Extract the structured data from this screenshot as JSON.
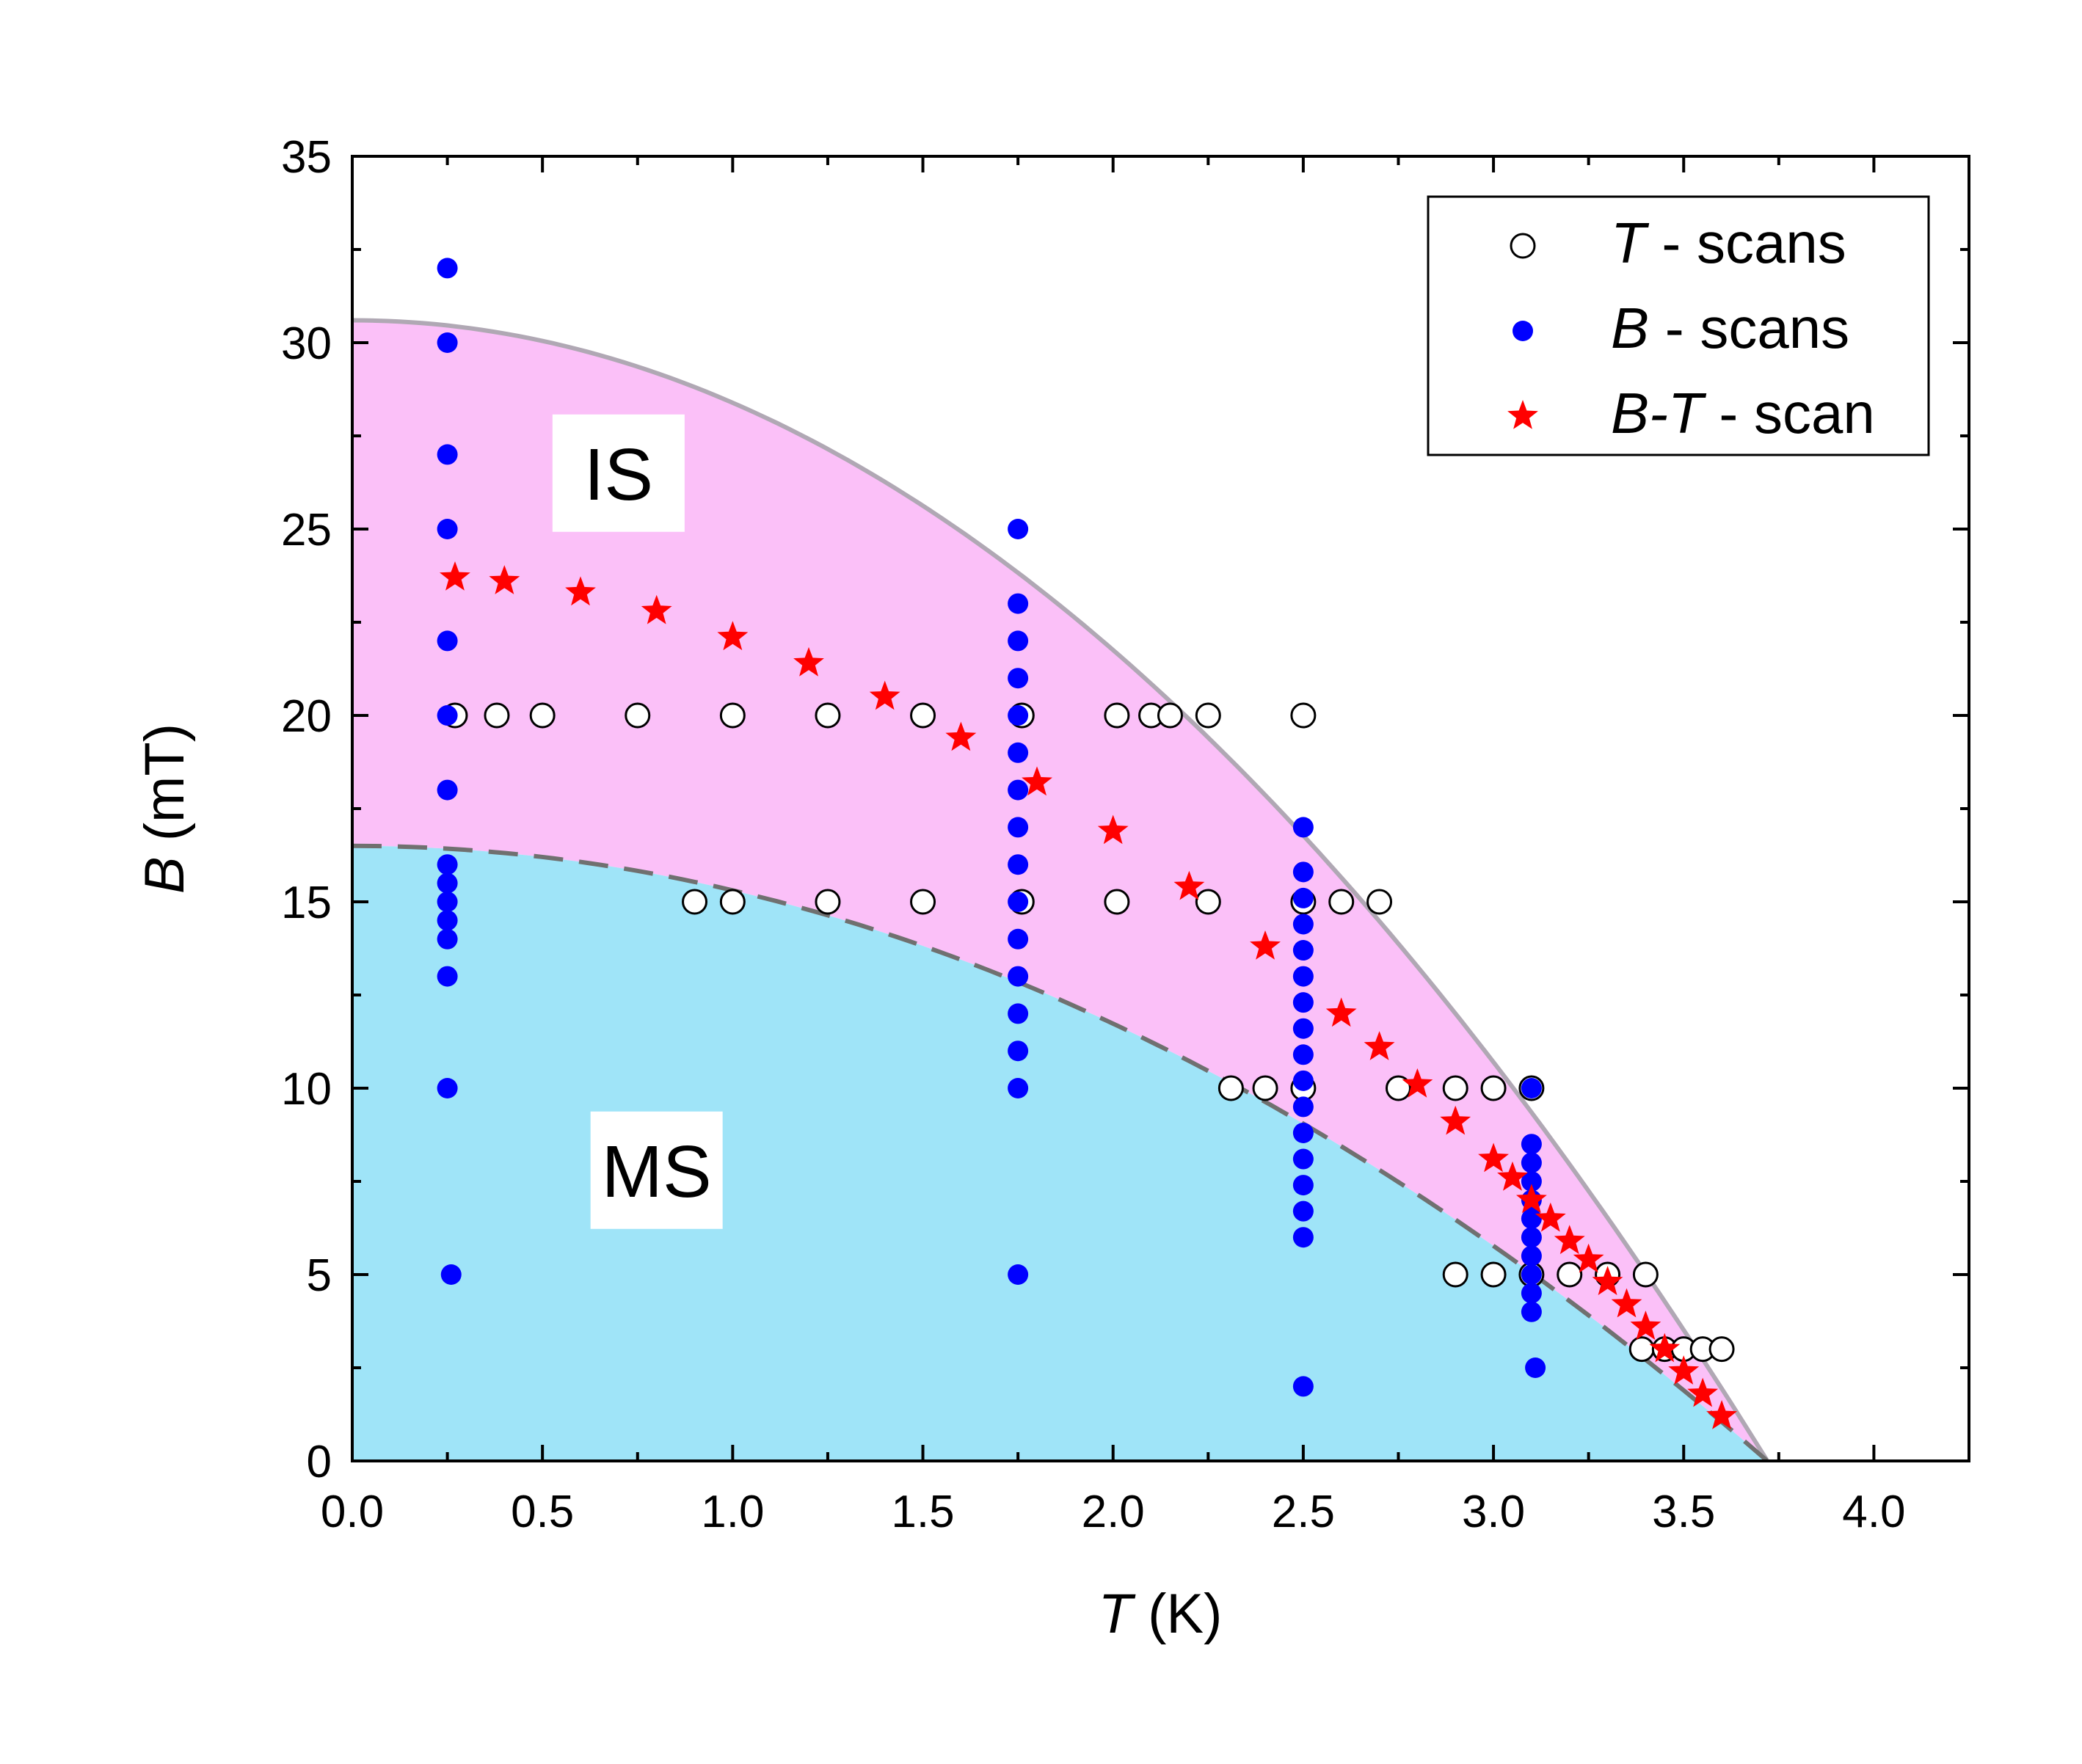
{
  "chart_data": {
    "type": "scatter",
    "title": "",
    "xlabel": "T (K)",
    "xlabel_italic": "T",
    "xlabel_rest": " (K)",
    "ylabel": "B (mT)",
    "ylabel_italic": "B",
    "ylabel_rest": " (mT)",
    "xlim": [
      0.0,
      4.25
    ],
    "ylim": [
      0,
      35
    ],
    "x_ticks": [
      0.0,
      0.5,
      1.0,
      1.5,
      2.0,
      2.5,
      3.0,
      3.5,
      4.0
    ],
    "x_tick_labels": [
      "0.0",
      "0.5",
      "1.0",
      "1.5",
      "2.0",
      "2.5",
      "3.0",
      "3.5",
      "4.0"
    ],
    "y_ticks": [
      0,
      5,
      10,
      15,
      20,
      25,
      30,
      35
    ],
    "y_tick_labels": [
      "0",
      "5",
      "10",
      "15",
      "20",
      "25",
      "30",
      "35"
    ],
    "legend_position": "top-right",
    "regions": [
      {
        "label": "IS",
        "color": "#fbc0f8",
        "boundary": "upper",
        "label_x": 0.7,
        "label_y": 26.5
      },
      {
        "label": "MS",
        "color": "#9fe4f8",
        "boundary": "lower",
        "label_x": 0.8,
        "label_y": 7.8
      }
    ],
    "boundaries": {
      "upper": {
        "style": "solid",
        "color": "#b0a8b4",
        "B0": 30.6,
        "Tc": 3.72,
        "exponent": 2
      },
      "lower": {
        "style": "dashed",
        "color": "#707070",
        "B0": 16.5,
        "Tc": 3.72,
        "exponent": 2
      }
    },
    "series": [
      {
        "name": "T - scans",
        "legend_italic": "T",
        "legend_rest": " - scans",
        "marker": "open-circle",
        "color": "#000000",
        "points": [
          [
            0.27,
            20
          ],
          [
            0.38,
            20
          ],
          [
            0.5,
            20
          ],
          [
            0.75,
            20
          ],
          [
            1.0,
            20
          ],
          [
            1.25,
            20
          ],
          [
            1.5,
            20
          ],
          [
            1.76,
            20
          ],
          [
            2.01,
            20
          ],
          [
            2.1,
            20
          ],
          [
            2.15,
            20
          ],
          [
            2.25,
            20
          ],
          [
            2.5,
            20
          ],
          [
            0.9,
            15
          ],
          [
            1.0,
            15
          ],
          [
            1.25,
            15
          ],
          [
            1.5,
            15
          ],
          [
            1.76,
            15
          ],
          [
            2.01,
            15
          ],
          [
            2.25,
            15
          ],
          [
            2.5,
            15
          ],
          [
            2.6,
            15
          ],
          [
            2.7,
            15
          ],
          [
            2.31,
            10
          ],
          [
            2.4,
            10
          ],
          [
            2.5,
            10
          ],
          [
            2.75,
            10
          ],
          [
            2.9,
            10
          ],
          [
            3.0,
            10
          ],
          [
            3.1,
            10
          ],
          [
            2.9,
            5
          ],
          [
            3.0,
            5
          ],
          [
            3.1,
            5
          ],
          [
            3.2,
            5
          ],
          [
            3.3,
            5
          ],
          [
            3.4,
            5
          ],
          [
            3.39,
            3
          ],
          [
            3.45,
            3
          ],
          [
            3.5,
            3
          ],
          [
            3.55,
            3
          ],
          [
            3.6,
            3
          ]
        ]
      },
      {
        "name": "B - scans",
        "legend_italic": "B",
        "legend_rest": " - scans",
        "marker": "filled-circle",
        "color": "#0000ff",
        "points": [
          [
            0.25,
            32
          ],
          [
            0.25,
            30
          ],
          [
            0.25,
            27
          ],
          [
            0.25,
            25
          ],
          [
            0.25,
            22
          ],
          [
            0.25,
            20
          ],
          [
            0.25,
            18
          ],
          [
            0.25,
            16
          ],
          [
            0.25,
            15.5
          ],
          [
            0.25,
            15
          ],
          [
            0.25,
            14.5
          ],
          [
            0.25,
            14
          ],
          [
            0.25,
            13
          ],
          [
            0.25,
            10
          ],
          [
            0.26,
            5
          ],
          [
            1.75,
            25
          ],
          [
            1.75,
            23
          ],
          [
            1.75,
            22
          ],
          [
            1.75,
            21
          ],
          [
            1.75,
            20
          ],
          [
            1.75,
            19
          ],
          [
            1.75,
            18
          ],
          [
            1.75,
            17
          ],
          [
            1.75,
            16
          ],
          [
            1.75,
            15
          ],
          [
            1.75,
            14
          ],
          [
            1.75,
            13
          ],
          [
            1.75,
            12
          ],
          [
            1.75,
            11
          ],
          [
            1.75,
            10
          ],
          [
            1.75,
            5
          ],
          [
            2.5,
            17
          ],
          [
            2.5,
            15.8
          ],
          [
            2.5,
            15.1
          ],
          [
            2.5,
            14.4
          ],
          [
            2.5,
            13.7
          ],
          [
            2.5,
            13
          ],
          [
            2.5,
            12.3
          ],
          [
            2.5,
            11.6
          ],
          [
            2.5,
            10.9
          ],
          [
            2.5,
            10.2
          ],
          [
            2.5,
            9.5
          ],
          [
            2.5,
            8.8
          ],
          [
            2.5,
            8.1
          ],
          [
            2.5,
            7.4
          ],
          [
            2.5,
            6.7
          ],
          [
            2.5,
            6
          ],
          [
            2.5,
            2
          ],
          [
            3.1,
            10
          ],
          [
            3.1,
            8.5
          ],
          [
            3.1,
            8
          ],
          [
            3.1,
            7.5
          ],
          [
            3.1,
            7
          ],
          [
            3.1,
            6.5
          ],
          [
            3.1,
            6
          ],
          [
            3.1,
            5.5
          ],
          [
            3.1,
            5
          ],
          [
            3.1,
            4.5
          ],
          [
            3.1,
            4
          ],
          [
            3.11,
            2.5
          ]
        ]
      },
      {
        "name": "B-T - scan",
        "legend_italic": "B-T",
        "legend_rest": " - scan",
        "marker": "star",
        "color": "#ff0000",
        "points": [
          [
            0.27,
            23.7
          ],
          [
            0.4,
            23.6
          ],
          [
            0.6,
            23.3
          ],
          [
            0.8,
            22.8
          ],
          [
            1.0,
            22.1
          ],
          [
            1.2,
            21.4
          ],
          [
            1.4,
            20.5
          ],
          [
            1.6,
            19.4
          ],
          [
            1.8,
            18.2
          ],
          [
            2.0,
            16.9
          ],
          [
            2.2,
            15.4
          ],
          [
            2.4,
            13.8
          ],
          [
            2.6,
            12.0
          ],
          [
            2.7,
            11.1
          ],
          [
            2.8,
            10.1
          ],
          [
            2.9,
            9.1
          ],
          [
            3.0,
            8.1
          ],
          [
            3.05,
            7.6
          ],
          [
            3.1,
            7.0
          ],
          [
            3.15,
            6.5
          ],
          [
            3.2,
            5.9
          ],
          [
            3.25,
            5.4
          ],
          [
            3.3,
            4.8
          ],
          [
            3.35,
            4.2
          ],
          [
            3.4,
            3.6
          ],
          [
            3.45,
            3.0
          ],
          [
            3.5,
            2.4
          ],
          [
            3.55,
            1.8
          ],
          [
            3.6,
            1.2
          ]
        ]
      }
    ]
  }
}
